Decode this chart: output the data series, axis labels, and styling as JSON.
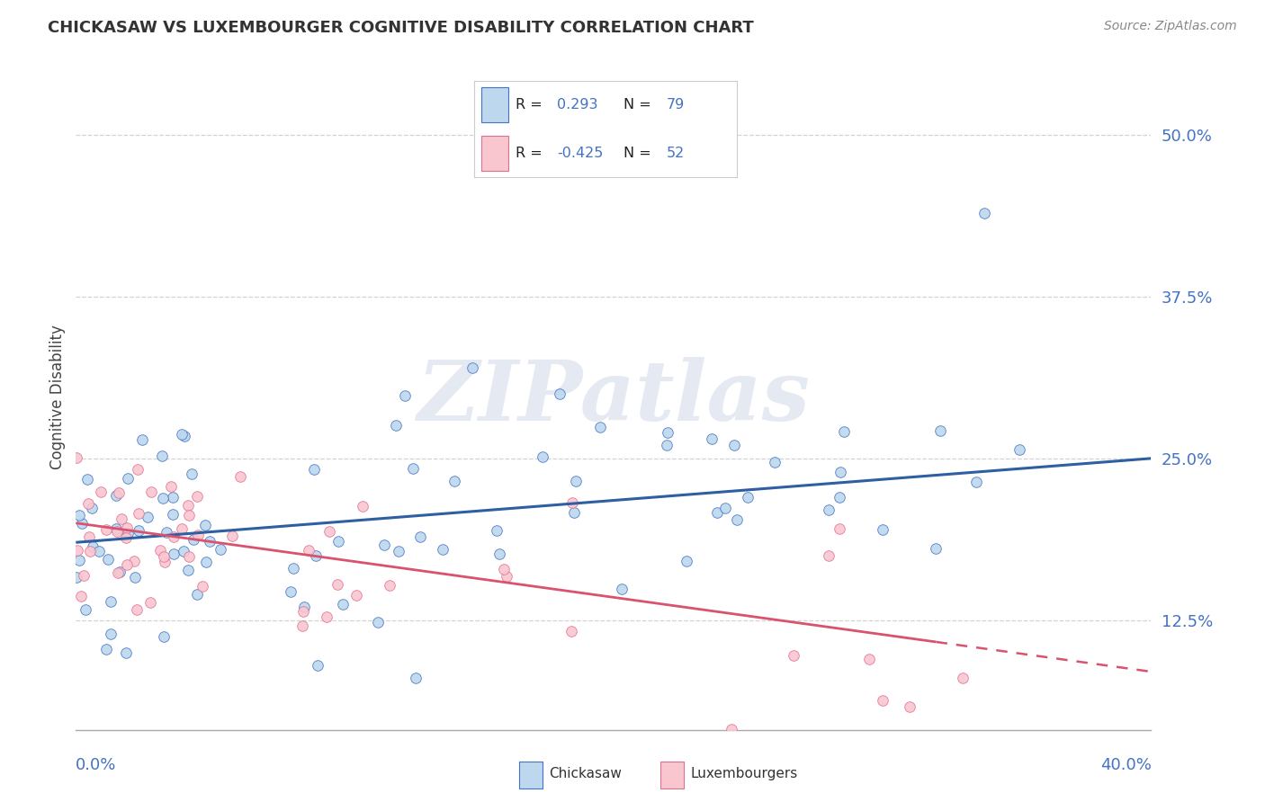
{
  "title": "CHICKASAW VS LUXEMBOURGER COGNITIVE DISABILITY CORRELATION CHART",
  "source": "Source: ZipAtlas.com",
  "ylabel": "Cognitive Disability",
  "y_ticks_labels": [
    "12.5%",
    "25.0%",
    "37.5%",
    "50.0%"
  ],
  "y_tick_vals": [
    0.125,
    0.25,
    0.375,
    0.5
  ],
  "x_range": [
    0.0,
    0.4
  ],
  "y_range": [
    0.04,
    0.555
  ],
  "chickasaw": {
    "R": 0.293,
    "N": 79,
    "color": "#bdd7ee",
    "edge_color": "#4472c4",
    "line_color": "#2e5fa3",
    "label": "Chickasaw"
  },
  "luxembourger": {
    "R": -0.425,
    "N": 52,
    "color": "#f9c6d0",
    "edge_color": "#e07090",
    "line_color": "#d9526e",
    "label": "Luxembourgers"
  },
  "watermark": "ZIPatlas",
  "background_color": "#ffffff",
  "grid_color": "#c8c8c8"
}
